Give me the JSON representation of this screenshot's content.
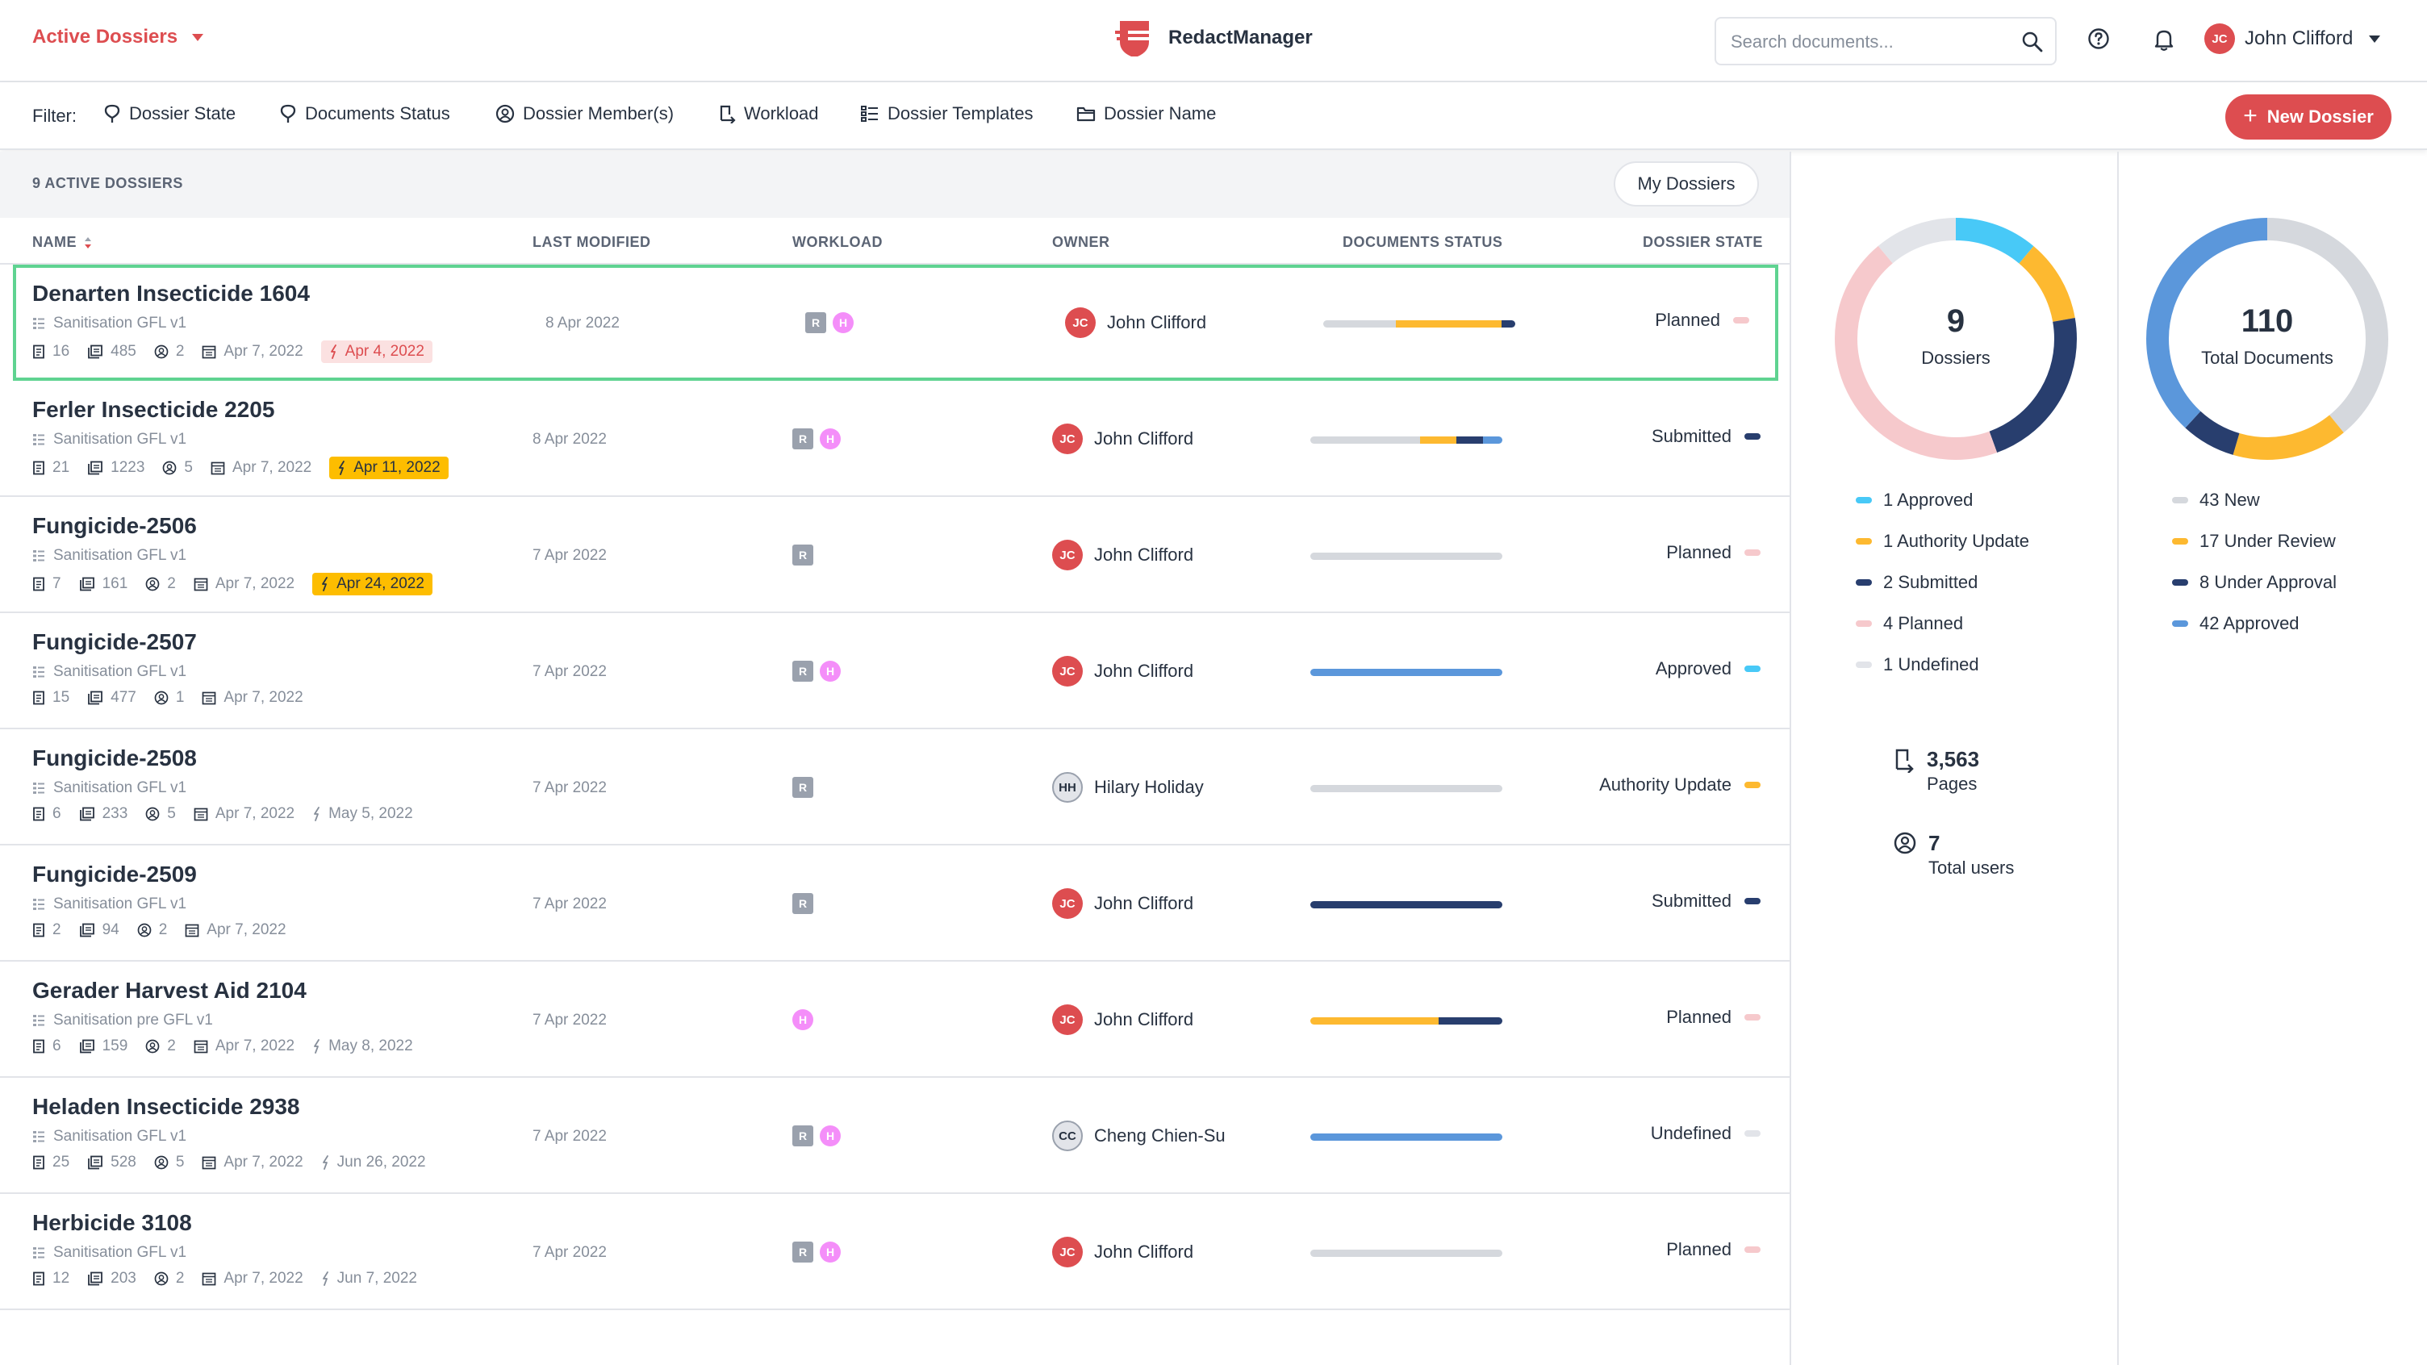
{
  "header": {
    "workspace_label": "Active Dossiers",
    "brand_name": "RedactManager",
    "search_placeholder": "Search documents...",
    "user": {
      "initials": "JC",
      "name": "John Clifford"
    }
  },
  "filters": {
    "label": "Filter:",
    "items": [
      "Dossier State",
      "Documents Status",
      "Dossier Member(s)",
      "Workload",
      "Dossier Templates",
      "Dossier Name"
    ],
    "new_button": "New Dossier"
  },
  "list": {
    "count_label": "9 ACTIVE DOSSIERS",
    "my_dossiers_button": "My Dossiers",
    "columns": [
      "NAME",
      "LAST MODIFIED",
      "WORKLOAD",
      "OWNER",
      "DOCUMENTS STATUS",
      "DOSSIER STATE"
    ],
    "rows": [
      {
        "name": "Denarten Insecticide 1604",
        "template": "Sanitisation GFL v1",
        "docs": "16",
        "pages": "485",
        "members": "2",
        "created": "Apr 7, 2022",
        "due": "Apr 4, 2022",
        "due_style": "over",
        "modified": "8 Apr 2022",
        "workload": [
          "R",
          "H"
        ],
        "owner_initials": "JC",
        "owner": "John Clifford",
        "owner_style": "red",
        "status_segments": [
          [
            "#d5d8dd",
            0.38
          ],
          [
            "#fdb930",
            0.55
          ],
          [
            "#283e6e",
            0.07
          ]
        ],
        "state": "Planned",
        "state_color": "#f6c9cc"
      },
      {
        "name": "Ferler Insecticide 2205",
        "template": "Sanitisation GFL v1",
        "docs": "21",
        "pages": "1223",
        "members": "5",
        "created": "Apr 7, 2022",
        "due": "Apr 11, 2022",
        "due_style": "warn",
        "modified": "8 Apr 2022",
        "workload": [
          "R",
          "H"
        ],
        "owner_initials": "JC",
        "owner": "John Clifford",
        "owner_style": "red",
        "status_segments": [
          [
            "#d5d8dd",
            0.57
          ],
          [
            "#fdb930",
            0.19
          ],
          [
            "#283e6e",
            0.14
          ],
          [
            "#5b97db",
            0.1
          ]
        ],
        "state": "Submitted",
        "state_color": "#283e6e"
      },
      {
        "name": "Fungicide-2506",
        "template": "Sanitisation GFL v1",
        "docs": "7",
        "pages": "161",
        "members": "2",
        "created": "Apr 7, 2022",
        "due": "Apr 24, 2022",
        "due_style": "warn",
        "modified": "7 Apr 2022",
        "workload": [
          "R"
        ],
        "owner_initials": "JC",
        "owner": "John Clifford",
        "owner_style": "red",
        "status_segments": [
          [
            "#d5d8dd",
            1.0
          ]
        ],
        "state": "Planned",
        "state_color": "#f6c9cc"
      },
      {
        "name": "Fungicide-2507",
        "template": "Sanitisation GFL v1",
        "docs": "15",
        "pages": "477",
        "members": "1",
        "created": "Apr 7, 2022",
        "due": "",
        "due_style": "none",
        "modified": "7 Apr 2022",
        "workload": [
          "R",
          "H"
        ],
        "owner_initials": "JC",
        "owner": "John Clifford",
        "owner_style": "red",
        "status_segments": [
          [
            "#5b97db",
            1.0
          ]
        ],
        "state": "Approved",
        "state_color": "#48c9f7"
      },
      {
        "name": "Fungicide-2508",
        "template": "Sanitisation GFL v1",
        "docs": "6",
        "pages": "233",
        "members": "5",
        "created": "Apr 7, 2022",
        "due": "May 5, 2022",
        "due_style": "plain",
        "modified": "7 Apr 2022",
        "workload": [
          "R"
        ],
        "owner_initials": "HH",
        "owner": "Hilary Holiday",
        "owner_style": "gray",
        "status_segments": [
          [
            "#d5d8dd",
            1.0
          ]
        ],
        "state": "Authority Update",
        "state_color": "#fdb930"
      },
      {
        "name": "Fungicide-2509",
        "template": "Sanitisation GFL v1",
        "docs": "2",
        "pages": "94",
        "members": "2",
        "created": "Apr 7, 2022",
        "due": "",
        "due_style": "none",
        "modified": "7 Apr 2022",
        "workload": [
          "R"
        ],
        "owner_initials": "JC",
        "owner": "John Clifford",
        "owner_style": "red",
        "status_segments": [
          [
            "#283e6e",
            1.0
          ]
        ],
        "state": "Submitted",
        "state_color": "#283e6e"
      },
      {
        "name": "Gerader Harvest Aid 2104",
        "template": "Sanitisation pre GFL v1",
        "docs": "6",
        "pages": "159",
        "members": "2",
        "created": "Apr 7, 2022",
        "due": "May 8, 2022",
        "due_style": "plain",
        "modified": "7 Apr 2022",
        "workload": [
          "H"
        ],
        "owner_initials": "JC",
        "owner": "John Clifford",
        "owner_style": "red",
        "status_segments": [
          [
            "#fdb930",
            0.67
          ],
          [
            "#283e6e",
            0.33
          ]
        ],
        "state": "Planned",
        "state_color": "#f6c9cc"
      },
      {
        "name": "Heladen Insecticide 2938",
        "template": "Sanitisation GFL v1",
        "docs": "25",
        "pages": "528",
        "members": "5",
        "created": "Apr 7, 2022",
        "due": "Jun 26, 2022",
        "due_style": "plain",
        "modified": "7 Apr 2022",
        "workload": [
          "R",
          "H"
        ],
        "owner_initials": "CC",
        "owner": "Cheng Chien-Su",
        "owner_style": "gray",
        "status_segments": [
          [
            "#5b97db",
            1.0
          ]
        ],
        "state": "Undefined",
        "state_color": "#e2e4e9"
      },
      {
        "name": "Herbicide 3108",
        "template": "Sanitisation GFL v1",
        "docs": "12",
        "pages": "203",
        "members": "2",
        "created": "Apr 7, 2022",
        "due": "Jun 7, 2022",
        "due_style": "plain",
        "modified": "7 Apr 2022",
        "workload": [
          "R",
          "H"
        ],
        "owner_initials": "JC",
        "owner": "John Clifford",
        "owner_style": "red",
        "status_segments": [
          [
            "#d5d8dd",
            1.0
          ]
        ],
        "state": "Planned",
        "state_color": "#f6c9cc"
      }
    ]
  },
  "summary": {
    "dossiers_chart": {
      "value": "9",
      "label": "Dossiers",
      "segments": [
        {
          "count": 1,
          "label": "1 Approved",
          "color": "#48c9f7"
        },
        {
          "count": 1,
          "label": "1 Authority Update",
          "color": "#fdb930"
        },
        {
          "count": 2,
          "label": "2 Submitted",
          "color": "#283e6e"
        },
        {
          "count": 4,
          "label": "4 Planned",
          "color": "#f6c9cc"
        },
        {
          "count": 1,
          "label": "1 Undefined",
          "color": "#e2e4e9"
        }
      ]
    },
    "documents_chart": {
      "value": "110",
      "label": "Total Documents",
      "segments": [
        {
          "count": 43,
          "label": "43 New",
          "color": "#d5d8dd"
        },
        {
          "count": 17,
          "label": "17 Under Review",
          "color": "#fdb930"
        },
        {
          "count": 8,
          "label": "8 Under Approval",
          "color": "#283e6e"
        },
        {
          "count": 42,
          "label": "42 Approved",
          "color": "#5b97db"
        }
      ]
    },
    "pages": {
      "value": "3,563",
      "label": "Pages"
    },
    "users": {
      "value": "7",
      "label": "Total users"
    }
  }
}
